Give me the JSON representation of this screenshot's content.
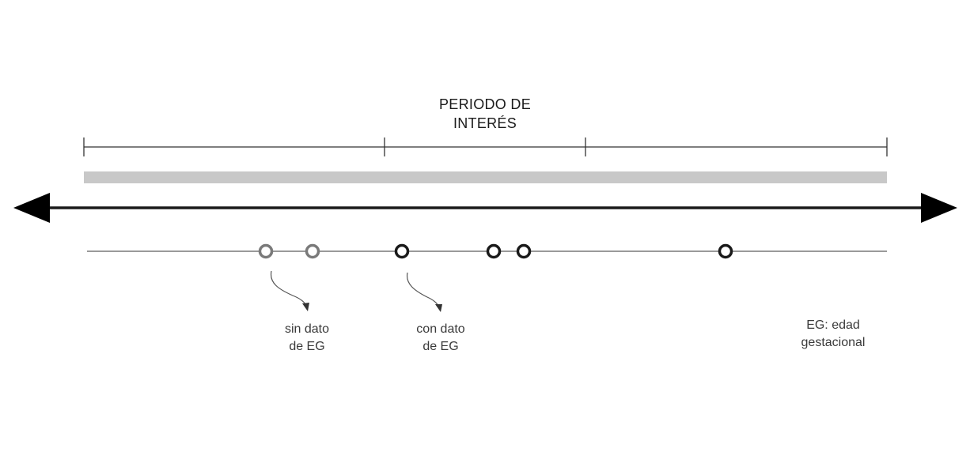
{
  "diagram": {
    "title_lines": [
      "PERIODO DE",
      "INTERÉS"
    ],
    "annotations": {
      "sin_dato": [
        "sin dato",
        "de EG"
      ],
      "con_dato": [
        "con dato",
        "de EG"
      ],
      "legend": [
        "EG: edad",
        "gestacional"
      ]
    },
    "colors": {
      "axis": "#1a1a1a",
      "period_bar": "#c8c8c8",
      "bracket": "#333333",
      "event_line": "#9a9a9a",
      "marker_without_ga": "#7a7a7a",
      "marker_with_ga": "#1a1a1a"
    },
    "markers": [
      {
        "kind": "sin_dato"
      },
      {
        "kind": "sin_dato"
      },
      {
        "kind": "con_dato"
      },
      {
        "kind": "con_dato"
      },
      {
        "kind": "con_dato"
      },
      {
        "kind": "con_dato"
      }
    ],
    "icons": {
      "axis_left": "arrowhead-left-icon",
      "axis_right": "arrowhead-right-icon",
      "pointer": "curved-arrow-icon"
    }
  }
}
